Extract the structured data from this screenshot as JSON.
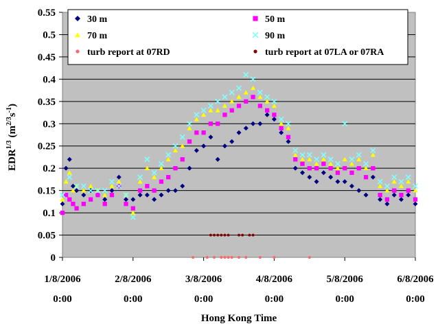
{
  "chart_data": {
    "type": "scatter",
    "xlabel": "Hong Kong Time",
    "ylabel": "EDR",
    "ylabel_sup": "1/3",
    "ylabel_units_base": "(m",
    "ylabel_units_sup1": "2/3",
    "ylabel_units_mid": "s",
    "ylabel_units_sup2": "-1",
    "ylabel_units_end": ")",
    "ylim": [
      0,
      0.55
    ],
    "yticks": [
      "0",
      "0.05",
      "0.1",
      "0.15",
      "0.2",
      "0.25",
      "0.3",
      "0.35",
      "0.4",
      "0.45",
      "0.5",
      "0.55"
    ],
    "xlim_days": [
      0,
      5
    ],
    "xtick_dates": [
      "1/8/2006",
      "2/8/2006",
      "3/8/2006",
      "4/8/2006",
      "5/8/2006",
      "6/8/2006"
    ],
    "xtick_times": [
      "0:00",
      "0:00",
      "0:00",
      "0:00",
      "0:00",
      "0:00"
    ],
    "grid": true,
    "plot_background": "#c0c0c0",
    "legend_position": "top",
    "series": [
      {
        "name": "30 m",
        "color": "#000080",
        "marker": "diamond",
        "x": [
          0.0,
          0.05,
          0.1,
          0.15,
          0.2,
          0.3,
          0.4,
          0.5,
          0.6,
          0.7,
          0.8,
          0.9,
          1.0,
          1.1,
          1.2,
          1.3,
          1.4,
          1.5,
          1.6,
          1.7,
          1.8,
          1.9,
          2.0,
          2.1,
          2.2,
          2.3,
          2.4,
          2.5,
          2.6,
          2.7,
          2.8,
          2.9,
          3.0,
          3.1,
          3.2,
          3.3,
          3.4,
          3.5,
          3.6,
          3.7,
          3.8,
          3.9,
          4.0,
          4.1,
          4.2,
          4.3,
          4.4,
          4.5,
          4.6,
          4.7,
          4.8,
          4.9,
          5.0
        ],
        "y": [
          0.12,
          0.2,
          0.22,
          0.16,
          0.15,
          0.14,
          0.15,
          0.14,
          0.13,
          0.15,
          0.18,
          0.13,
          0.13,
          0.14,
          0.14,
          0.13,
          0.14,
          0.15,
          0.15,
          0.16,
          0.2,
          0.24,
          0.25,
          0.27,
          0.22,
          0.25,
          0.26,
          0.28,
          0.29,
          0.3,
          0.3,
          0.32,
          0.31,
          0.28,
          0.26,
          0.2,
          0.19,
          0.18,
          0.17,
          0.19,
          0.18,
          0.17,
          0.17,
          0.16,
          0.15,
          0.14,
          0.18,
          0.13,
          0.12,
          0.14,
          0.13,
          0.14,
          0.12
        ]
      },
      {
        "name": "50 m",
        "color": "#ff00ff",
        "marker": "square",
        "x": [
          0.0,
          0.05,
          0.1,
          0.15,
          0.2,
          0.3,
          0.4,
          0.5,
          0.6,
          0.7,
          0.8,
          0.9,
          1.0,
          1.1,
          1.2,
          1.3,
          1.4,
          1.5,
          1.6,
          1.7,
          1.8,
          1.9,
          2.0,
          2.1,
          2.2,
          2.3,
          2.4,
          2.5,
          2.6,
          2.7,
          2.8,
          2.9,
          3.0,
          3.1,
          3.2,
          3.3,
          3.4,
          3.5,
          3.6,
          3.7,
          3.8,
          3.9,
          4.0,
          4.1,
          4.2,
          4.3,
          4.4,
          4.5,
          4.6,
          4.7,
          4.8,
          4.9,
          5.0
        ],
        "y": [
          0.1,
          0.14,
          0.13,
          0.12,
          0.11,
          0.12,
          0.13,
          0.14,
          0.12,
          0.14,
          0.16,
          0.12,
          0.11,
          0.15,
          0.16,
          0.15,
          0.17,
          0.18,
          0.2,
          0.22,
          0.26,
          0.28,
          0.28,
          0.3,
          0.3,
          0.32,
          0.33,
          0.34,
          0.35,
          0.36,
          0.34,
          0.33,
          0.32,
          0.29,
          0.27,
          0.22,
          0.21,
          0.2,
          0.2,
          0.21,
          0.2,
          0.19,
          0.2,
          0.19,
          0.2,
          0.18,
          0.2,
          0.14,
          0.13,
          0.15,
          0.14,
          0.15,
          0.13
        ]
      },
      {
        "name": "70 m",
        "color": "#ffff00",
        "marker": "triangle",
        "x": [
          0.0,
          0.05,
          0.1,
          0.15,
          0.2,
          0.3,
          0.4,
          0.5,
          0.6,
          0.7,
          0.8,
          0.9,
          1.0,
          1.1,
          1.2,
          1.3,
          1.4,
          1.5,
          1.6,
          1.7,
          1.8,
          1.9,
          2.0,
          2.1,
          2.2,
          2.3,
          2.4,
          2.5,
          2.6,
          2.7,
          2.8,
          2.9,
          3.0,
          3.1,
          3.2,
          3.3,
          3.4,
          3.5,
          3.6,
          3.7,
          3.8,
          3.9,
          4.0,
          4.1,
          4.2,
          4.3,
          4.4,
          4.5,
          4.6,
          4.7,
          4.8,
          4.9,
          5.0
        ],
        "y": [
          0.13,
          0.17,
          0.19,
          0.15,
          0.16,
          0.15,
          0.16,
          0.15,
          0.14,
          0.16,
          0.17,
          0.14,
          0.1,
          0.17,
          0.2,
          0.18,
          0.2,
          0.22,
          0.24,
          0.25,
          0.29,
          0.31,
          0.32,
          0.33,
          0.33,
          0.34,
          0.35,
          0.36,
          0.37,
          0.38,
          0.36,
          0.35,
          0.34,
          0.3,
          0.29,
          0.23,
          0.22,
          0.22,
          0.21,
          0.22,
          0.21,
          0.2,
          0.22,
          0.21,
          0.22,
          0.2,
          0.23,
          0.16,
          0.15,
          0.17,
          0.16,
          0.17,
          0.15
        ]
      },
      {
        "name": "90 m",
        "color": "#80ffff",
        "marker": "cross",
        "x": [
          0.0,
          0.1,
          0.2,
          0.3,
          0.4,
          0.5,
          0.6,
          0.7,
          0.8,
          0.9,
          1.0,
          1.1,
          1.2,
          1.3,
          1.4,
          1.5,
          1.6,
          1.7,
          1.8,
          1.9,
          2.0,
          2.1,
          2.2,
          2.3,
          2.4,
          2.5,
          2.6,
          2.7,
          2.8,
          2.9,
          3.0,
          3.1,
          3.2,
          3.3,
          3.4,
          3.5,
          3.6,
          3.7,
          3.8,
          3.9,
          4.0,
          4.1,
          4.2,
          4.3,
          4.4,
          4.5,
          4.6,
          4.7,
          4.8,
          4.9,
          5.0
        ],
        "y": [
          0.14,
          0.18,
          0.16,
          0.16,
          0.15,
          0.15,
          0.15,
          0.17,
          0.16,
          0.14,
          0.09,
          0.18,
          0.22,
          0.19,
          0.21,
          0.23,
          0.25,
          0.27,
          0.3,
          0.32,
          0.33,
          0.34,
          0.35,
          0.36,
          0.37,
          0.38,
          0.41,
          0.4,
          0.37,
          0.36,
          0.35,
          0.31,
          0.3,
          0.24,
          0.23,
          0.23,
          0.22,
          0.23,
          0.22,
          0.21,
          0.3,
          0.22,
          0.23,
          0.21,
          0.24,
          0.17,
          0.16,
          0.18,
          0.17,
          0.18,
          0.16
        ]
      },
      {
        "name": "turb report at 07RD",
        "color": "#ff6666",
        "marker": "dot",
        "x": [
          1.85,
          2.05,
          2.15,
          2.25,
          2.3,
          2.35,
          2.4,
          2.5,
          2.6,
          2.8,
          3.0,
          3.5
        ],
        "y": [
          0,
          0,
          0,
          0,
          0,
          0,
          0,
          0,
          0,
          0,
          0,
          0
        ]
      },
      {
        "name": "turb report at 07LA or 07RA",
        "color": "#800000",
        "marker": "dot",
        "x": [
          2.1,
          2.15,
          2.2,
          2.25,
          2.3,
          2.35,
          2.5,
          2.55,
          2.65,
          2.7
        ],
        "y": [
          0.05,
          0.05,
          0.05,
          0.05,
          0.05,
          0.05,
          0.05,
          0.05,
          0.05,
          0.05
        ]
      }
    ]
  }
}
